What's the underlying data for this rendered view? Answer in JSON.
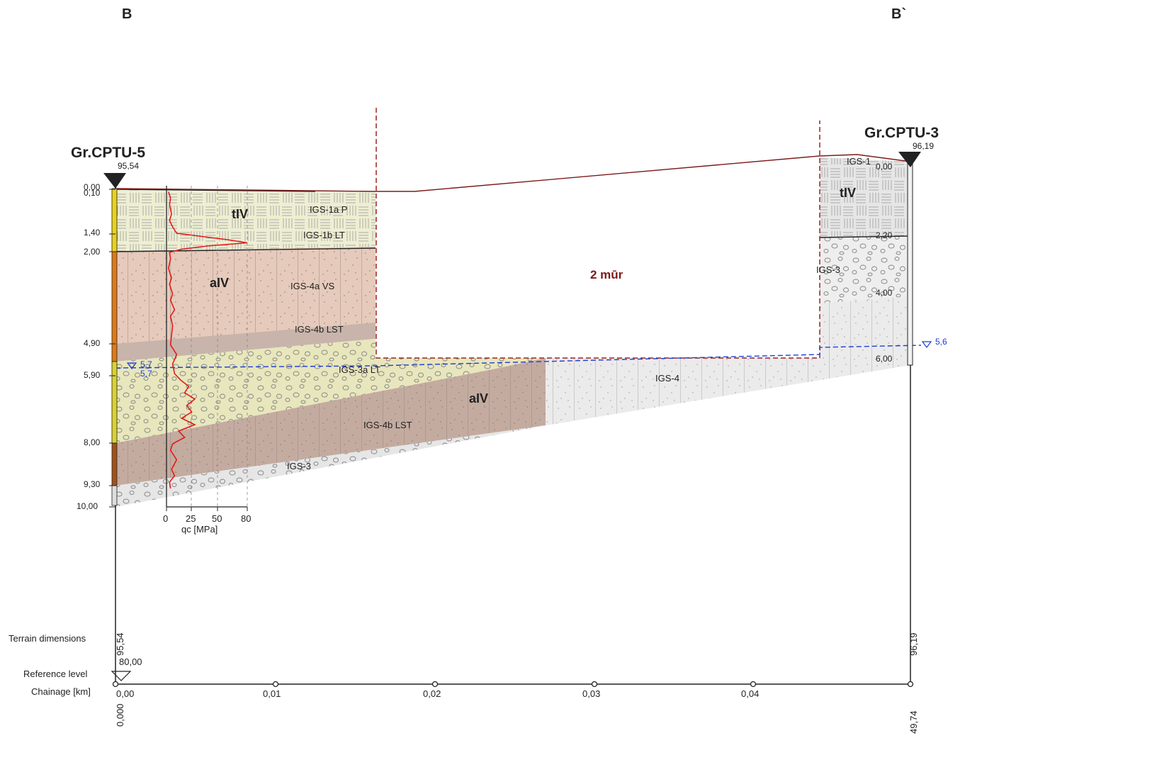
{
  "section": {
    "start_label": "B",
    "end_label": "B`"
  },
  "boreholes": [
    {
      "name": "Gr.CPTU-5",
      "elevation": "95,54",
      "depth_labels": [
        "0,00",
        "0,10",
        "1,40",
        "2,00",
        "4,90",
        "5,90",
        "8,00",
        "9,30",
        "10,00"
      ],
      "water_level": "5,7",
      "water_level_2": "5,7"
    },
    {
      "name": "Gr.CPTU-3",
      "elevation": "96,19",
      "depth_labels": [
        "0,00",
        "2,20",
        "4,00",
        "6,00"
      ],
      "water_level": "5,6"
    }
  ],
  "layer_labels": {
    "igs_1a": "IGS-1a P",
    "igs_1b": "IGS-1b LT",
    "tiv": "tIV",
    "aiv": "aIV",
    "igs_4a": "IGS-4a VS",
    "igs_4b": "IGS-4b LST",
    "igs_3a": "IGS-3a LT",
    "igs_4b_2": "IGS-4b LST",
    "igs_3": "IGS-3",
    "igs_4": "IGS-4",
    "aiv_2": "aIV",
    "tiv_2": "tIV",
    "igs_1": "IGS-1",
    "igs_3_right": "IGS-3"
  },
  "wall_label": "2 mūr",
  "cpt_axis": {
    "ticks": [
      "0",
      "25",
      "50",
      "80"
    ],
    "label": "qc [MPa]"
  },
  "cpt_profile": {
    "depth_m": [
      0.1,
      0.3,
      0.5,
      0.8,
      1.0,
      1.2,
      1.4,
      1.5,
      1.6,
      1.7,
      1.8,
      1.9,
      2.0,
      2.2,
      2.5,
      2.8,
      3.0,
      3.3,
      3.5,
      3.8,
      4.0,
      4.3,
      4.6,
      4.9,
      5.2,
      5.5,
      5.8,
      6.0,
      6.2,
      6.4,
      6.6,
      6.8,
      7.0,
      7.2,
      7.4,
      7.6,
      7.8,
      8.0,
      8.2,
      8.5,
      8.8,
      9.0,
      9.2,
      9.4
    ],
    "qc_mpa": [
      2,
      4,
      3,
      5,
      3,
      6,
      10,
      35,
      60,
      80,
      40,
      15,
      3,
      4,
      2,
      5,
      3,
      6,
      4,
      8,
      4,
      6,
      5,
      4,
      10,
      6,
      8,
      14,
      22,
      18,
      28,
      20,
      25,
      15,
      28,
      12,
      18,
      6,
      4,
      10,
      5,
      8,
      3,
      4
    ]
  },
  "bottom": {
    "terrain_title": "Terrain dimensions",
    "reference_title": "Reference level",
    "chainage_title": "Chainage [km]",
    "reference_value": "80,00",
    "terrain_left": "95,54",
    "terrain_right": "96,19",
    "chainage_left": "0,000",
    "chainage_right": "49,74",
    "chainage_ticks": [
      "0,00",
      "0,01",
      "0,02",
      "0,03",
      "0,04"
    ]
  }
}
